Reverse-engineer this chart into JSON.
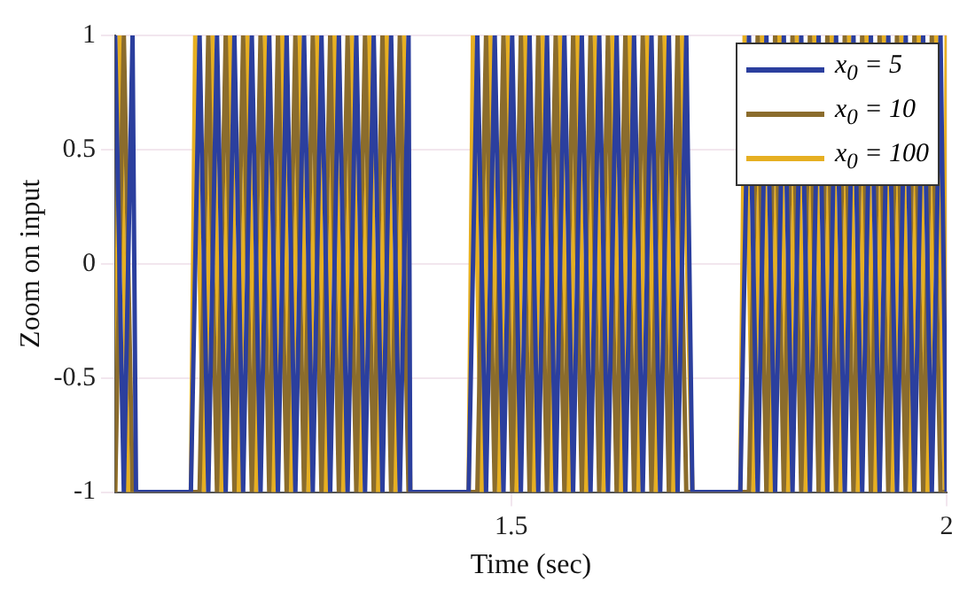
{
  "chart_data": {
    "type": "line",
    "xlabel": "Time (sec)",
    "ylabel": "Zoom on input",
    "xlim": [
      1.045,
      2
    ],
    "xticks": [
      1.5,
      2
    ],
    "ylim": [
      -1,
      1
    ],
    "yticks": [
      -1,
      -0.5,
      0,
      0.5,
      1
    ],
    "grid": true,
    "legend": "top right",
    "marker": "none",
    "line_style": "solid",
    "series": [
      {
        "name": "x$_{0}$ = 5",
        "color": "#2b3f9e",
        "x": [
          1.045,
          1.055,
          1.065,
          1.069,
          1.132,
          1.142,
          1.152,
          1.162,
          1.172,
          1.182,
          1.192,
          1.202,
          1.212,
          1.222,
          1.232,
          1.242,
          1.252,
          1.262,
          1.272,
          1.282,
          1.292,
          1.302,
          1.312,
          1.322,
          1.332,
          1.342,
          1.352,
          1.362,
          1.372,
          1.382,
          1.384,
          1.451,
          1.461,
          1.471,
          1.481,
          1.491,
          1.501,
          1.511,
          1.521,
          1.531,
          1.541,
          1.551,
          1.561,
          1.571,
          1.581,
          1.591,
          1.601,
          1.611,
          1.621,
          1.631,
          1.641,
          1.651,
          1.661,
          1.671,
          1.681,
          1.691,
          1.701,
          1.708,
          1.763,
          1.773,
          1.783,
          1.793,
          1.803,
          1.813,
          1.823,
          1.833,
          1.843,
          1.853,
          1.863,
          1.873,
          1.883,
          1.893,
          1.903,
          1.913,
          1.923,
          1.933,
          1.943,
          1.953,
          1.963,
          1.973,
          1.983,
          1.993,
          2.0
        ],
        "values": [
          1,
          -1,
          1,
          -1,
          -1,
          1,
          -1,
          1,
          -1,
          1,
          -1,
          1,
          -1,
          1,
          -1,
          1,
          -1,
          1,
          -1,
          1,
          -1,
          1,
          -1,
          1,
          -1,
          1,
          -1,
          1,
          -1,
          1,
          -1,
          -1,
          1,
          -1,
          1,
          -1,
          1,
          -1,
          1,
          -1,
          1,
          -1,
          1,
          -1,
          1,
          -1,
          1,
          -1,
          1,
          -1,
          1,
          -1,
          1,
          -1,
          1,
          -1,
          1,
          -1,
          -1,
          1,
          -1,
          1,
          -1,
          1,
          -1,
          1,
          -1,
          1,
          -1,
          1,
          -1,
          1,
          -1,
          1,
          -1,
          1,
          -1,
          1,
          -1,
          1,
          -1,
          1,
          -1
        ]
      },
      {
        "name": "x$_{0}$ = 10",
        "color": "#8b6c2c",
        "x": [
          1.045,
          1.055,
          1.065,
          1.069,
          1.132,
          1.142,
          1.152,
          1.162,
          1.172,
          1.182,
          1.192,
          1.202,
          1.212,
          1.222,
          1.232,
          1.242,
          1.252,
          1.262,
          1.272,
          1.282,
          1.292,
          1.302,
          1.312,
          1.322,
          1.332,
          1.342,
          1.352,
          1.362,
          1.372,
          1.382,
          1.384,
          1.451,
          1.461,
          1.471,
          1.481,
          1.491,
          1.501,
          1.511,
          1.521,
          1.531,
          1.541,
          1.551,
          1.561,
          1.571,
          1.581,
          1.591,
          1.601,
          1.611,
          1.621,
          1.631,
          1.641,
          1.651,
          1.661,
          1.671,
          1.681,
          1.691,
          1.701,
          1.708,
          1.763,
          1.773,
          1.783,
          1.793,
          1.803,
          1.813,
          1.823,
          1.833,
          1.843,
          1.853,
          1.863,
          1.873,
          1.883,
          1.893,
          1.903,
          1.913,
          1.923,
          1.933,
          1.943,
          1.953,
          1.963,
          1.973,
          1.983,
          1.993,
          2.0
        ],
        "values": [
          -1,
          1,
          -1,
          -1,
          -1,
          -1,
          1,
          -1,
          1,
          -1,
          1,
          -1,
          1,
          -1,
          1,
          -1,
          1,
          -1,
          1,
          -1,
          1,
          -1,
          1,
          -1,
          1,
          -1,
          1,
          -1,
          1,
          -1,
          -1,
          -1,
          -1,
          1,
          -1,
          1,
          -1,
          1,
          -1,
          1,
          -1,
          1,
          -1,
          1,
          -1,
          1,
          -1,
          1,
          -1,
          1,
          -1,
          1,
          -1,
          1,
          -1,
          1,
          -1,
          -1,
          -1,
          -1,
          1,
          -1,
          1,
          -1,
          1,
          -1,
          1,
          -1,
          1,
          -1,
          1,
          -1,
          1,
          -1,
          1,
          -1,
          1,
          -1,
          1,
          -1,
          1,
          -1,
          -1
        ]
      },
      {
        "name": "x$_{0}$ = 100",
        "color": "#e6af22",
        "x": [
          1.045,
          1.05,
          1.06,
          1.069,
          1.132,
          1.137,
          1.147,
          1.157,
          1.167,
          1.177,
          1.187,
          1.197,
          1.207,
          1.217,
          1.227,
          1.237,
          1.247,
          1.257,
          1.267,
          1.277,
          1.287,
          1.297,
          1.307,
          1.317,
          1.327,
          1.337,
          1.347,
          1.357,
          1.367,
          1.377,
          1.384,
          1.451,
          1.456,
          1.466,
          1.476,
          1.486,
          1.496,
          1.506,
          1.516,
          1.526,
          1.536,
          1.546,
          1.556,
          1.566,
          1.576,
          1.586,
          1.596,
          1.606,
          1.616,
          1.626,
          1.636,
          1.646,
          1.656,
          1.666,
          1.676,
          1.686,
          1.696,
          1.708,
          1.763,
          1.768,
          1.778,
          1.788,
          1.798,
          1.808,
          1.818,
          1.828,
          1.838,
          1.848,
          1.858,
          1.868,
          1.878,
          1.888,
          1.898,
          1.908,
          1.918,
          1.928,
          1.938,
          1.948,
          1.958,
          1.968,
          1.978,
          1.988,
          1.998,
          2.0
        ],
        "values": [
          -1,
          1,
          -1,
          -1,
          -1,
          1,
          -1,
          1,
          -1,
          1,
          -1,
          1,
          -1,
          1,
          -1,
          1,
          -1,
          1,
          -1,
          1,
          -1,
          1,
          -1,
          1,
          -1,
          1,
          -1,
          1,
          -1,
          1,
          -1,
          -1,
          1,
          -1,
          1,
          -1,
          1,
          -1,
          1,
          -1,
          1,
          -1,
          1,
          -1,
          1,
          -1,
          1,
          -1,
          1,
          -1,
          1,
          -1,
          1,
          -1,
          1,
          -1,
          1,
          -1,
          -1,
          1,
          -1,
          1,
          -1,
          1,
          -1,
          1,
          -1,
          1,
          -1,
          1,
          -1,
          1,
          -1,
          1,
          -1,
          1,
          -1,
          1,
          -1,
          1,
          -1,
          1,
          -1,
          1
        ]
      }
    ]
  }
}
